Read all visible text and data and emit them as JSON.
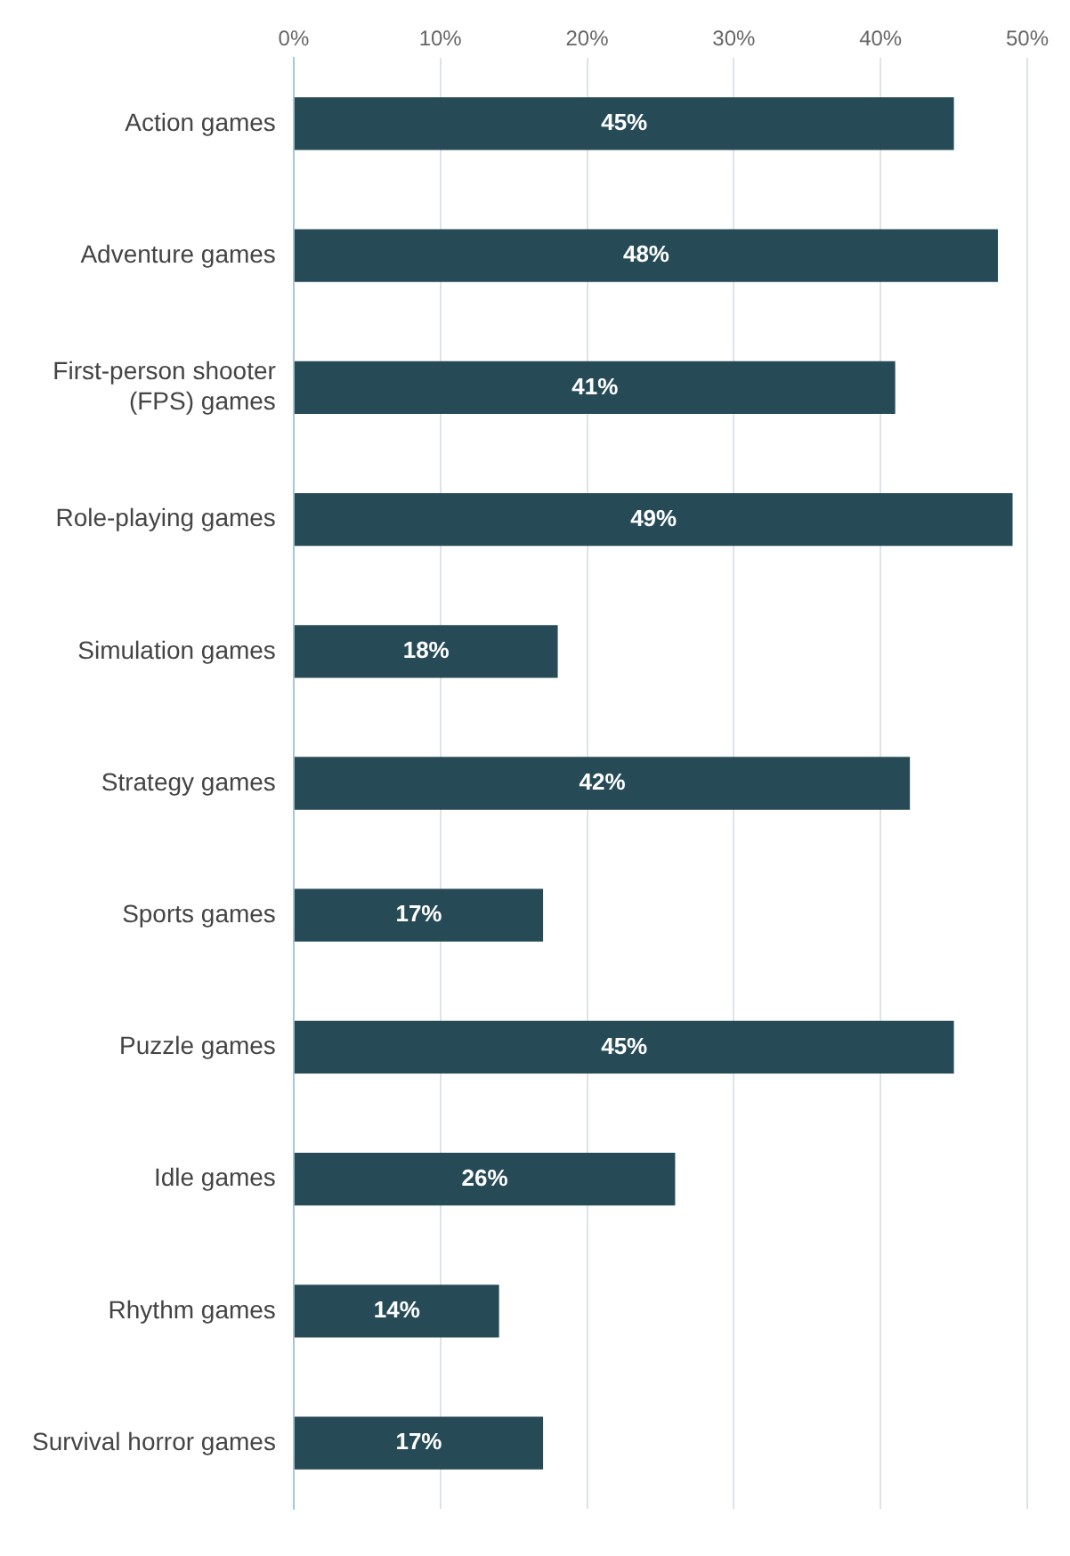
{
  "chart_data": {
    "type": "bar",
    "orientation": "horizontal",
    "categories": [
      "Action games",
      "Adventure games",
      "First-person shooter (FPS) games",
      "Role-playing games",
      "Simulation games",
      "Strategy games",
      "Sports games",
      "Puzzle games",
      "Idle games",
      "Rhythm games",
      "Survival horror games"
    ],
    "values": [
      45,
      48,
      41,
      49,
      18,
      42,
      17,
      45,
      26,
      14,
      17
    ],
    "value_labels": [
      "45%",
      "48%",
      "41%",
      "49%",
      "18%",
      "42%",
      "17%",
      "45%",
      "26%",
      "14%",
      "17%"
    ],
    "color": "#264b57",
    "xlim": [
      0,
      50
    ],
    "xticks": [
      {
        "value": 0,
        "label": "0%"
      },
      {
        "value": 10,
        "label": "10%"
      },
      {
        "value": 20,
        "label": "20%"
      },
      {
        "value": 30,
        "label": "30%"
      },
      {
        "value": 40,
        "label": "40%"
      },
      {
        "value": 50,
        "label": "50%"
      }
    ],
    "grid": "x",
    "legend": false
  }
}
